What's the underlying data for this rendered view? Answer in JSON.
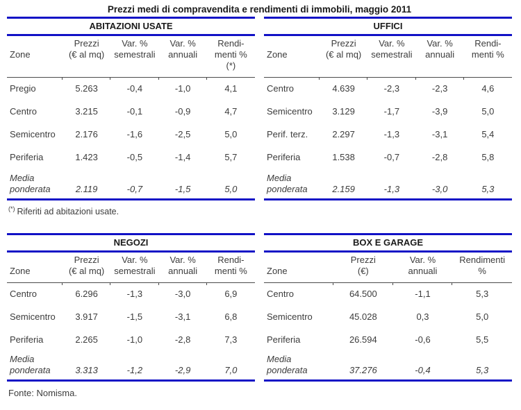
{
  "page_title": "Prezzi medi di compravendita e rendimenti di immobili, maggio 2011",
  "accent_color": "#1111C6",
  "tables": [
    {
      "id": "abitazioni-usate",
      "title": "ABITAZIONI USATE",
      "headers": [
        "Zone",
        "Prezzi\n(€ al mq)",
        "Var. %\nsemestrali",
        "Var. %\nannuali",
        "Rendi-\nmenti %\n(*)"
      ],
      "rows": [
        {
          "zone": "Pregio",
          "values": [
            "5.263",
            "-0,4",
            "-1,0",
            "4,1"
          ]
        },
        {
          "zone": "Centro",
          "values": [
            "3.215",
            "-0,1",
            "-0,9",
            "4,7"
          ]
        },
        {
          "zone": "Semicentro",
          "values": [
            "2.176",
            "-1,6",
            "-2,5",
            "5,0"
          ]
        },
        {
          "zone": "Periferia",
          "values": [
            "1.423",
            "-0,5",
            "-1,4",
            "5,7"
          ]
        },
        {
          "zone": "Media\nponderata",
          "values": [
            "2.119",
            "-0,7",
            "-1,5",
            "5,0"
          ],
          "italic": true
        }
      ]
    },
    {
      "id": "uffici",
      "title": "UFFICI",
      "headers": [
        "Zone",
        "Prezzi\n(€ al mq)",
        "Var. %\nsemestrali",
        "Var. %\nannuali",
        "Rendi-\nmenti %"
      ],
      "rows": [
        {
          "zone": "Centro",
          "values": [
            "4.639",
            "-2,3",
            "-2,3",
            "4,6"
          ]
        },
        {
          "zone": "Semicentro",
          "values": [
            "3.129",
            "-1,7",
            "-3,9",
            "5,0"
          ]
        },
        {
          "zone": "Perif. terz.",
          "values": [
            "2.297",
            "-1,3",
            "-3,1",
            "5,4"
          ]
        },
        {
          "zone": "Periferia",
          "values": [
            "1.538",
            "-0,7",
            "-2,8",
            "5,8"
          ]
        },
        {
          "zone": "Media\nponderata",
          "values": [
            "2.159",
            "-1,3",
            "-3,0",
            "5,3"
          ],
          "italic": true
        }
      ]
    },
    {
      "id": "negozi",
      "title": "NEGOZI",
      "headers": [
        "Zone",
        "Prezzi\n(€ al mq)",
        "Var. %\nsemestrali",
        "Var. %\nannuali",
        "Rendi-\nmenti %"
      ],
      "rows": [
        {
          "zone": "Centro",
          "values": [
            "6.296",
            "-1,3",
            "-3,0",
            "6,9"
          ]
        },
        {
          "zone": "Semicentro",
          "values": [
            "3.917",
            "-1,5",
            "-3,1",
            "6,8"
          ]
        },
        {
          "zone": "Periferia",
          "values": [
            "2.265",
            "-1,0",
            "-2,8",
            "7,3"
          ]
        },
        {
          "zone": "Media\nponderata",
          "values": [
            "3.313",
            "-1,2",
            "-2,9",
            "7,0"
          ],
          "italic": true
        }
      ]
    },
    {
      "id": "box-e-garage",
      "title": "BOX E GARAGE",
      "headers": [
        "Zone",
        "Prezzi\n(€)",
        "Var. %\nannuali",
        "Rendimenti\n%"
      ],
      "rows": [
        {
          "zone": "Centro",
          "values": [
            "64.500",
            "-1,1",
            "5,3"
          ]
        },
        {
          "zone": "Semicentro",
          "values": [
            "45.028",
            "0,3",
            "5,0"
          ]
        },
        {
          "zone": "Periferia",
          "values": [
            "26.594",
            "-0,6",
            "5,5"
          ]
        },
        {
          "zone": "Media\nponderata",
          "values": [
            "37.276",
            "-0,4",
            "5,3"
          ],
          "italic": true
        }
      ]
    }
  ],
  "footnote": {
    "marker": "(*)",
    "text": "Riferiti ad abitazioni usate."
  },
  "source": "Fonte: Nomisma."
}
